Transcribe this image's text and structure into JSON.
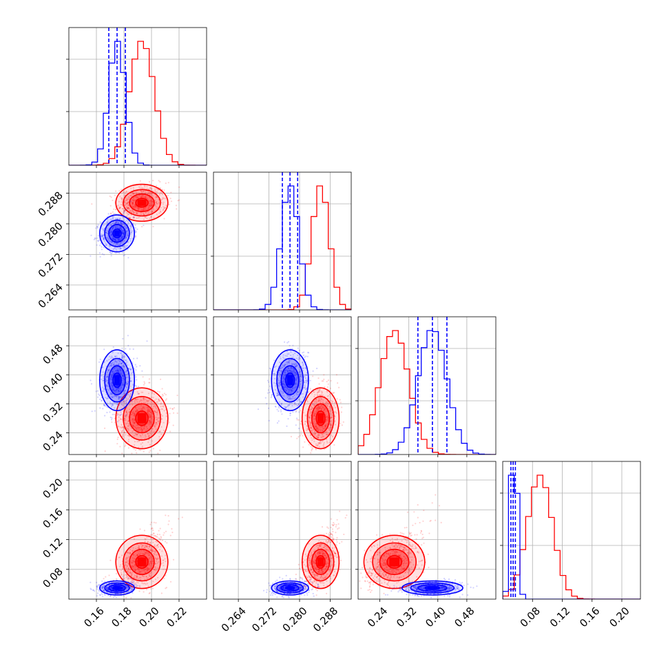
{
  "chart_data": {
    "type": "corner",
    "grid": true,
    "colors": {
      "series_a": "#ff0000",
      "series_b": "#0000ff",
      "grid": "#b0b0b0"
    },
    "parameters": [
      {
        "range": [
          0.14,
          0.24
        ],
        "ticks": [
          0.16,
          0.18,
          0.2,
          0.22
        ],
        "tick_labels": [
          "0.16",
          "0.18",
          "0.20",
          "0.22"
        ]
      },
      {
        "range": [
          0.2575,
          0.2935
        ],
        "ticks": [
          0.264,
          0.272,
          0.28,
          0.288
        ],
        "tick_labels": [
          "0.264",
          "0.272",
          "0.280",
          "0.288"
        ]
      },
      {
        "range": [
          0.18,
          0.56
        ],
        "ticks": [
          0.24,
          0.32,
          0.4,
          0.48
        ],
        "tick_labels": [
          "0.24",
          "0.32",
          "0.40",
          "0.48"
        ]
      },
      {
        "range": [
          0.04,
          0.225
        ],
        "ticks": [
          0.08,
          0.12,
          0.16,
          0.2
        ],
        "tick_labels": [
          "0.08",
          "0.12",
          "0.16",
          "0.20"
        ]
      }
    ],
    "series": [
      {
        "name": "",
        "color": "#ff0000",
        "mean": [
          0.193,
          0.2855,
          0.28,
          0.09
        ],
        "sd": [
          0.009,
          0.0023,
          0.04,
          0.017
        ],
        "quantiles_shown": false
      },
      {
        "name": "",
        "color": "#0000ff",
        "mean": [
          0.175,
          0.2775,
          0.385,
          0.055
        ],
        "sd": [
          0.006,
          0.0023,
          0.04,
          0.0045
        ],
        "quantiles_shown": true,
        "quantiles": [
          [
            0.169,
            0.175,
            0.181
          ],
          [
            0.2755,
            0.2775,
            0.2795
          ],
          [
            0.345,
            0.385,
            0.425
          ],
          [
            0.051,
            0.054,
            0.057
          ]
        ]
      }
    ]
  }
}
